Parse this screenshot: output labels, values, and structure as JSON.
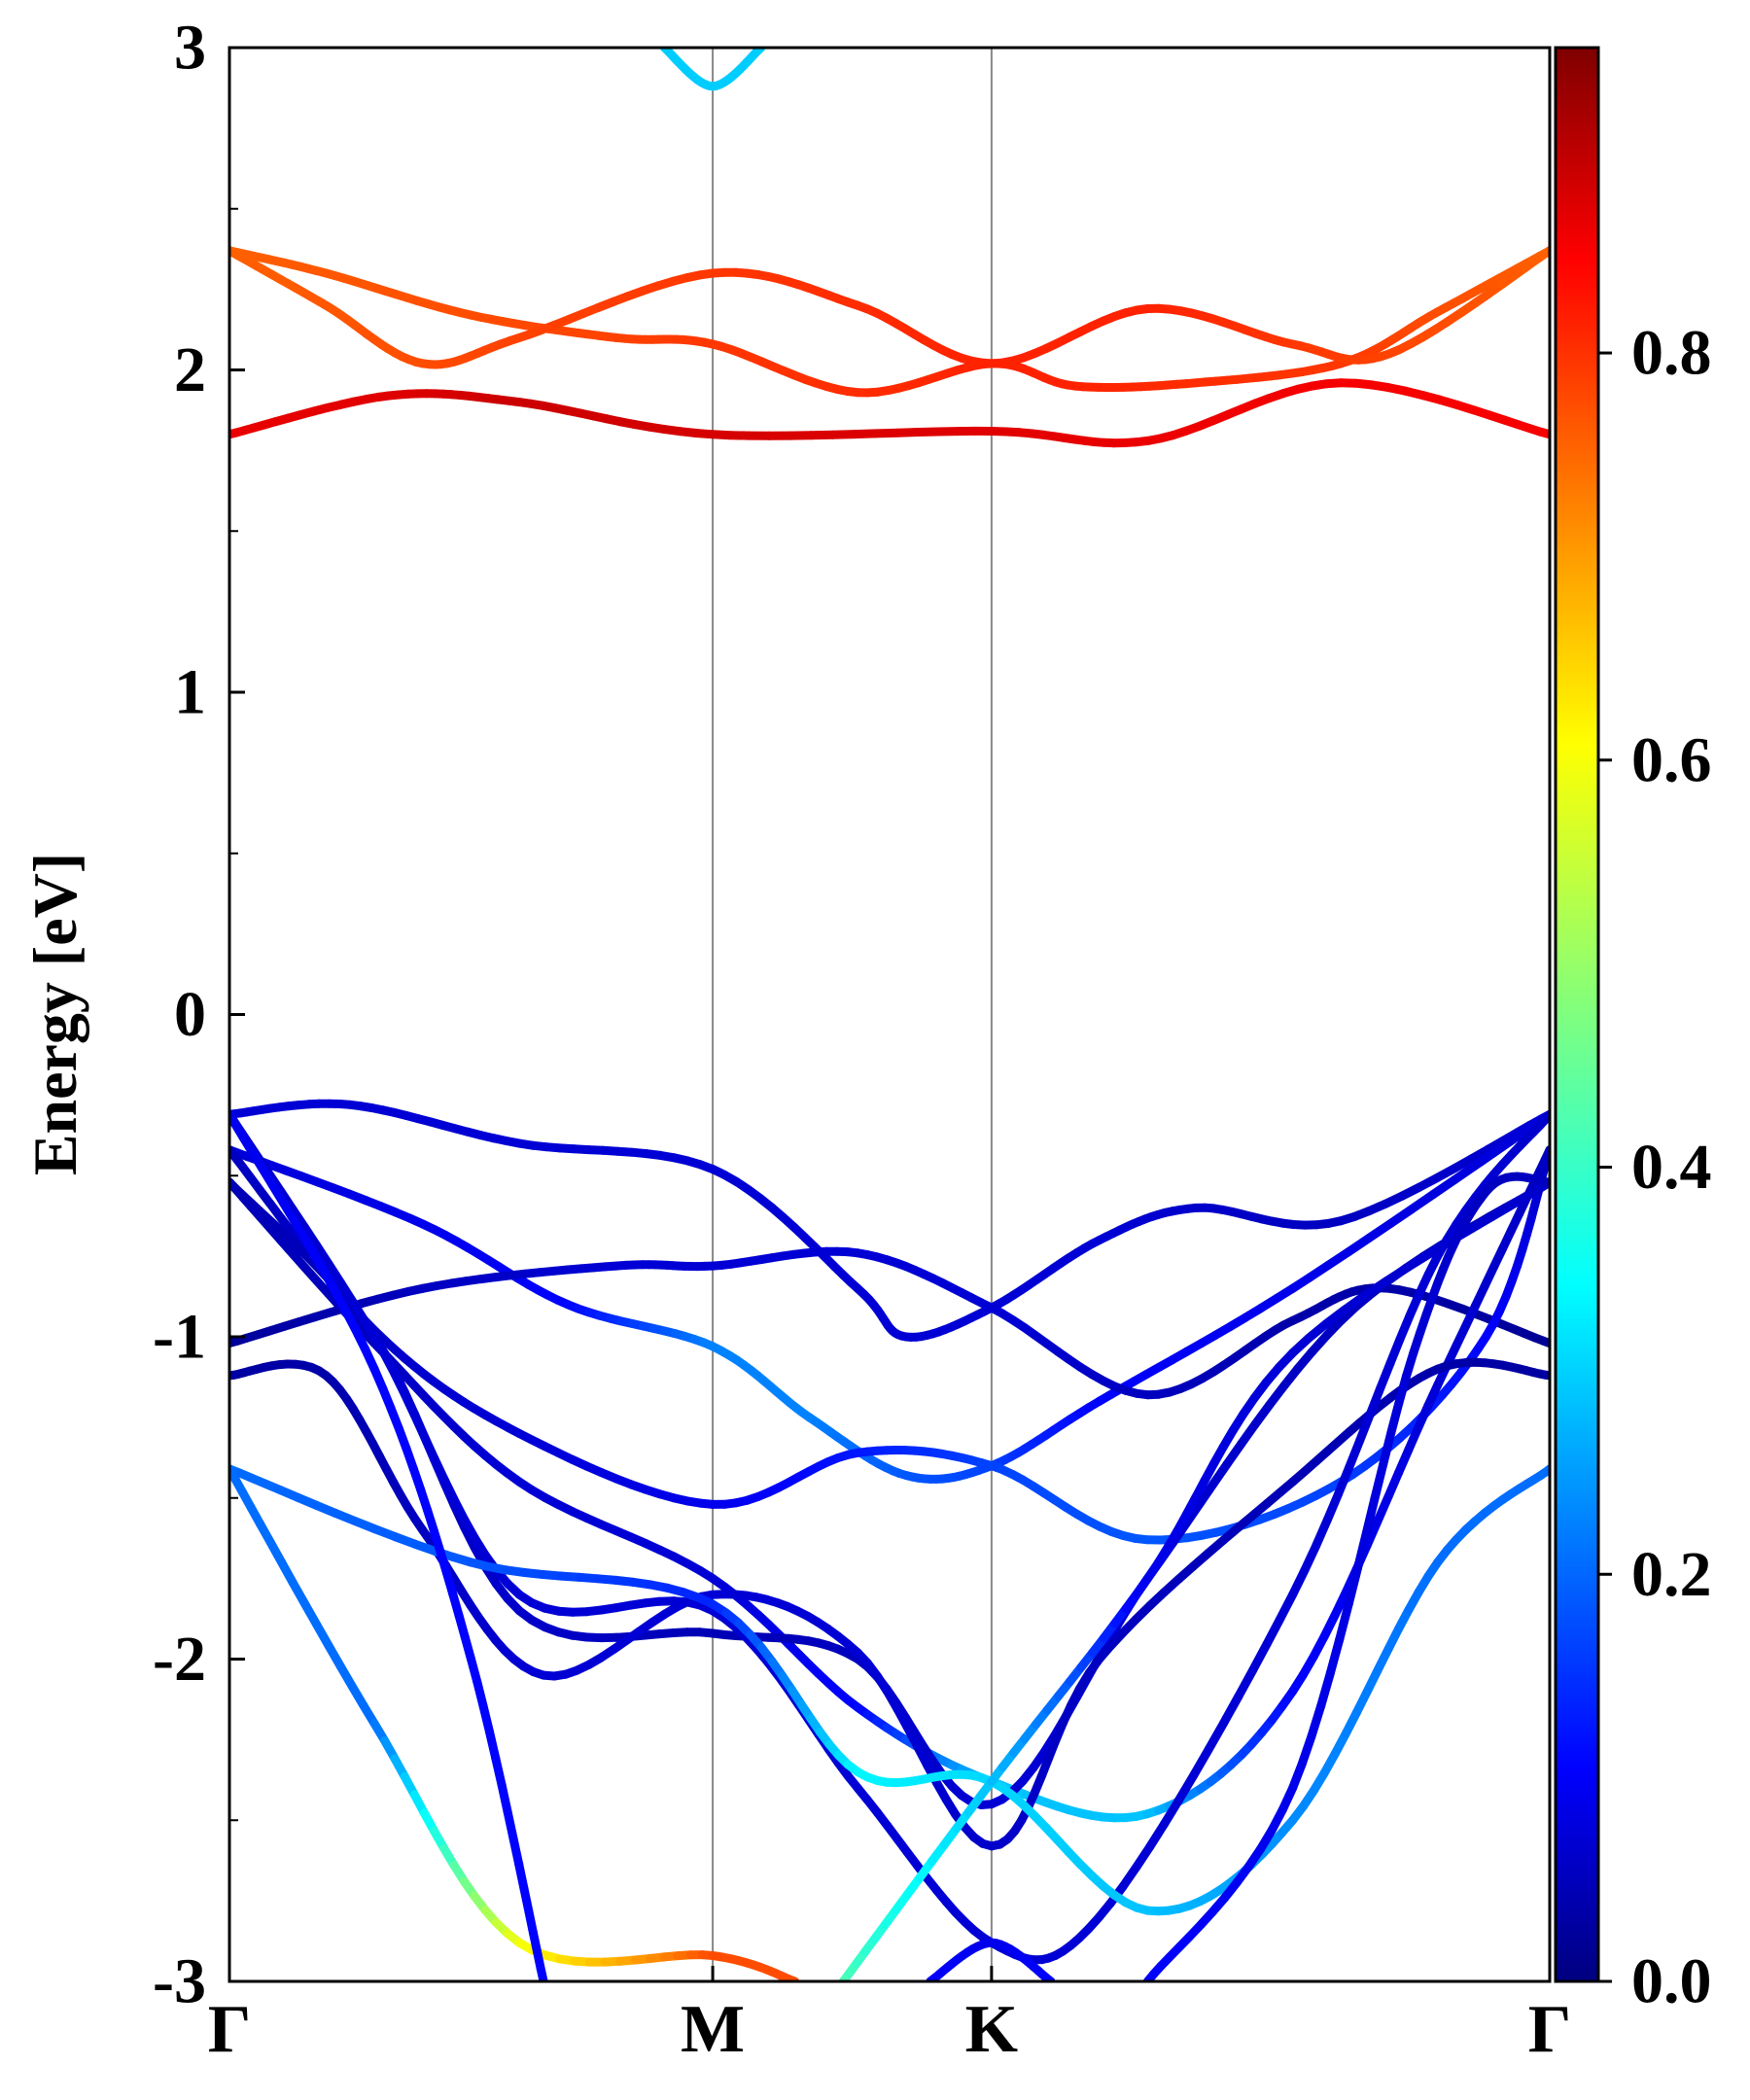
{
  "chart_data": {
    "type": "line",
    "title": "",
    "xlabel": "",
    "ylabel": "Energy [eV]",
    "ylim": [
      -3,
      3
    ],
    "grid": false,
    "x_kpoints": [
      {
        "label": "Γ",
        "x": 0
      },
      {
        "label": "M",
        "x": 1
      },
      {
        "label": "K",
        "x": 1.577
      },
      {
        "label": "Γ",
        "x": 2.732
      }
    ],
    "y_ticks": [
      -3,
      -2,
      -1,
      0,
      1,
      2,
      3
    ],
    "y_tick_labels": [
      "-3",
      "-2",
      "-1",
      "0",
      "1",
      "2",
      "3"
    ],
    "colorbar": {
      "colormap": "jet",
      "range": [
        0,
        0.95
      ],
      "ticks": [
        0.0,
        0.2,
        0.4,
        0.6,
        0.8
      ],
      "tick_labels": [
        "0.0",
        "0.2",
        "0.4",
        "0.6",
        "0.8"
      ]
    },
    "series": [
      {
        "points": [
          [
            0,
            1.8,
            0.85
          ],
          [
            0.33,
            1.92,
            0.86
          ],
          [
            0.6,
            1.9,
            0.88
          ],
          [
            1,
            1.8,
            0.87
          ],
          [
            1.577,
            1.81,
            0.86
          ],
          [
            1.9,
            1.78,
            0.85
          ],
          [
            2.3,
            1.96,
            0.84
          ],
          [
            2.732,
            1.8,
            0.84
          ]
        ]
      },
      {
        "points": [
          [
            0,
            2.37,
            0.74
          ],
          [
            0.2,
            2.3,
            0.75
          ],
          [
            0.5,
            2.17,
            0.76
          ],
          [
            0.8,
            2.1,
            0.77
          ],
          [
            1,
            2.08,
            0.78
          ],
          [
            1.3,
            1.93,
            0.79
          ],
          [
            1.577,
            2.02,
            0.8
          ],
          [
            1.75,
            1.95,
            0.8
          ],
          [
            2,
            1.96,
            0.79
          ],
          [
            2.3,
            2.02,
            0.78
          ],
          [
            2.5,
            2.18,
            0.76
          ],
          [
            2.732,
            2.37,
            0.74
          ]
        ]
      },
      {
        "points": [
          [
            0,
            2.37,
            0.74
          ],
          [
            0.2,
            2.2,
            0.75
          ],
          [
            0.4,
            2.02,
            0.76
          ],
          [
            0.6,
            2.1,
            0.77
          ],
          [
            1,
            2.3,
            0.78
          ],
          [
            1.3,
            2.2,
            0.79
          ],
          [
            1.577,
            2.02,
            0.8
          ],
          [
            1.9,
            2.19,
            0.8
          ],
          [
            2.2,
            2.08,
            0.78
          ],
          [
            2.4,
            2.05,
            0.77
          ],
          [
            2.732,
            2.37,
            0.74
          ]
        ]
      },
      {
        "points": [
          [
            0.9,
            3.0,
            0.31
          ],
          [
            1,
            2.88,
            0.31
          ],
          [
            1.1,
            3.0,
            0.31
          ]
        ]
      },
      {
        "points": [
          [
            0,
            -0.31,
            0.08
          ],
          [
            0.25,
            -0.28,
            0.08
          ],
          [
            0.6,
            -0.4,
            0.08
          ],
          [
            1,
            -0.48,
            0.08
          ],
          [
            1.3,
            -0.85,
            0.08
          ],
          [
            1.4,
            -1.0,
            0.08
          ],
          [
            1.577,
            -0.91,
            0.08
          ],
          [
            1.8,
            -0.7,
            0.08
          ],
          [
            2.0,
            -0.6,
            0.07
          ],
          [
            2.3,
            -0.64,
            0.06
          ],
          [
            2.732,
            -0.31,
            0.08
          ]
        ]
      },
      {
        "points": [
          [
            0,
            -0.42,
            0.08
          ],
          [
            0.4,
            -0.65,
            0.1
          ],
          [
            0.7,
            -0.9,
            0.12
          ],
          [
            1,
            -1.03,
            0.24
          ],
          [
            1.2,
            -1.25,
            0.24
          ],
          [
            1.4,
            -1.43,
            0.2
          ],
          [
            1.577,
            -1.4,
            0.18
          ],
          [
            1.8,
            -1.2,
            0.12
          ],
          [
            2.2,
            -0.85,
            0.1
          ],
          [
            2.732,
            -0.31,
            0.08
          ]
        ]
      },
      {
        "points": [
          [
            0,
            -1.02,
            0.02
          ],
          [
            0.4,
            -0.85,
            0.06
          ],
          [
            0.8,
            -0.78,
            0.08
          ],
          [
            1,
            -0.78,
            0.08
          ],
          [
            1.3,
            -0.74,
            0.08
          ],
          [
            1.577,
            -0.91,
            0.08
          ],
          [
            1.9,
            -1.18,
            0.06
          ],
          [
            2.2,
            -0.95,
            0.04
          ],
          [
            2.4,
            -0.85,
            0.04
          ],
          [
            2.732,
            -1.02,
            0.02
          ]
        ]
      },
      {
        "points": [
          [
            0,
            -0.42,
            0.06
          ],
          [
            0.3,
            -0.98,
            0.07
          ],
          [
            0.6,
            -1.3,
            0.08
          ],
          [
            1,
            -1.52,
            0.1
          ],
          [
            1.3,
            -1.36,
            0.14
          ],
          [
            1.577,
            -1.4,
            0.18
          ],
          [
            1.9,
            -1.63,
            0.2
          ],
          [
            2.3,
            -1.45,
            0.18
          ],
          [
            2.6,
            -1.0,
            0.12
          ],
          [
            2.732,
            -0.42,
            0.06
          ]
        ]
      },
      {
        "points": [
          [
            0,
            -0.52,
            0.05
          ],
          [
            0.3,
            -1.02,
            0.06
          ],
          [
            0.6,
            -1.45,
            0.08
          ],
          [
            1,
            -1.75,
            0.08
          ],
          [
            1.3,
            -2.15,
            0.12
          ],
          [
            1.577,
            -2.38,
            0.3
          ],
          [
            1.9,
            -2.48,
            0.3
          ],
          [
            2.2,
            -2.1,
            0.12
          ],
          [
            2.5,
            -1.15,
            0.08
          ],
          [
            2.732,
            -0.42,
            0.06
          ]
        ]
      },
      {
        "points": [
          [
            0,
            -0.52,
            0.05
          ],
          [
            0.3,
            -1.0,
            0.06
          ],
          [
            0.6,
            -1.85,
            0.07
          ],
          [
            1,
            -1.92,
            0.05
          ],
          [
            1.3,
            -2.0,
            0.06
          ],
          [
            1.577,
            -2.45,
            0.08
          ],
          [
            1.9,
            -1.75,
            0.08
          ],
          [
            2.3,
            -0.95,
            0.06
          ],
          [
            2.732,
            -0.52,
            0.05
          ]
        ]
      },
      {
        "points": [
          [
            0,
            -1.12,
            0.03
          ],
          [
            0.2,
            -1.12,
            0.04
          ],
          [
            0.4,
            -1.6,
            0.06
          ],
          [
            0.65,
            -2.05,
            0.08
          ],
          [
            1,
            -1.8,
            0.08
          ],
          [
            1.3,
            -1.98,
            0.08
          ],
          [
            1.577,
            -2.58,
            0.07
          ],
          [
            1.8,
            -2.0,
            0.06
          ],
          [
            2.2,
            -1.45,
            0.05
          ],
          [
            2.5,
            -1.1,
            0.04
          ],
          [
            2.732,
            -1.12,
            0.03
          ]
        ]
      },
      {
        "points": [
          [
            0,
            -0.31,
            0.07
          ],
          [
            0.3,
            -1.0,
            0.08
          ],
          [
            0.6,
            -1.8,
            0.08
          ],
          [
            1,
            -1.85,
            0.08
          ],
          [
            1.3,
            -2.4,
            0.08
          ],
          [
            1.577,
            -2.88,
            0.08
          ],
          [
            1.8,
            -2.8,
            0.08
          ],
          [
            2.2,
            -1.8,
            0.08
          ],
          [
            2.5,
            -0.75,
            0.08
          ],
          [
            2.732,
            -0.31,
            0.07
          ]
        ]
      },
      {
        "points": [
          [
            0,
            -1.41,
            0.22
          ],
          [
            0.5,
            -1.7,
            0.2
          ],
          [
            1,
            -1.83,
            0.15
          ],
          [
            1.3,
            -2.35,
            0.35
          ],
          [
            1.577,
            -2.38,
            0.32
          ],
          [
            1.9,
            -2.78,
            0.3
          ],
          [
            2.2,
            -2.5,
            0.25
          ],
          [
            2.5,
            -1.7,
            0.22
          ],
          [
            2.732,
            -1.41,
            0.22
          ]
        ]
      },
      {
        "points": [
          [
            0,
            -1.41,
            0.22
          ],
          [
            0.3,
            -2.2,
            0.22
          ],
          [
            0.6,
            -2.88,
            0.58
          ],
          [
            1,
            -2.92,
            0.76
          ],
          [
            1.17,
            -3.0,
            0.76
          ]
        ]
      },
      {
        "points": [
          [
            1.27,
            -3.0,
            0.43
          ],
          [
            1.577,
            -2.38,
            0.3
          ],
          [
            1.9,
            -1.75,
            0.1
          ],
          [
            2.2,
            -1.05,
            0.08
          ],
          [
            2.732,
            -0.52,
            0.07
          ]
        ]
      },
      {
        "points": [
          [
            0,
            -0.31,
            0.1
          ],
          [
            0.3,
            -1.1,
            0.12
          ],
          [
            0.5,
            -2.0,
            0.12
          ],
          [
            0.65,
            -3.0,
            0.12
          ]
        ]
      },
      {
        "points": [
          [
            1.45,
            -3.0,
            0.12
          ],
          [
            1.577,
            -2.88,
            0.1
          ],
          [
            1.7,
            -3.0,
            0.12
          ]
        ]
      },
      {
        "points": [
          [
            1.9,
            -3.0,
            0.12
          ],
          [
            2.2,
            -2.4,
            0.1
          ],
          [
            2.45,
            -1.05,
            0.08
          ],
          [
            2.6,
            -0.55,
            0.06
          ],
          [
            2.732,
            -0.52,
            0.06
          ]
        ]
      }
    ]
  }
}
